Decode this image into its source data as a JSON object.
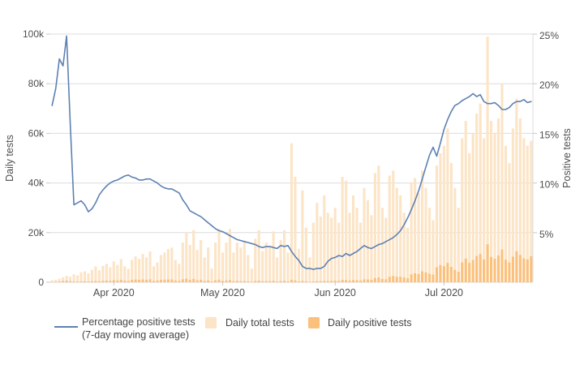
{
  "axes": {
    "left": {
      "title": "Daily tests",
      "ticks": [
        "0",
        "20k",
        "40k",
        "60k",
        "80k",
        "100k"
      ]
    },
    "right": {
      "title": "Positive tests",
      "ticks": [
        "5%",
        "10%",
        "15%",
        "20%",
        "25%"
      ]
    },
    "x": {
      "ticks": [
        "Apr 2020",
        "May 2020",
        "Jun 2020",
        "Jul 2020"
      ]
    }
  },
  "legend": {
    "line_label_1": "Percentage positive tests",
    "line_label_2": "(7-day moving average)",
    "total_label": "Daily total tests",
    "positive_label": "Daily positive tests"
  },
  "colors": {
    "line": "#5e81b2",
    "total_bar": "#fce4c6",
    "positive_bar": "#fbc07b",
    "grid": "#dcdcdc",
    "tick": "#c8c8c8",
    "text": "#4d4d4d"
  },
  "chart_data": {
    "type": "bar+line",
    "x_start": "2020-03-15",
    "x_end": "2020-07-25",
    "x_tick_labels": [
      "Apr 2020",
      "May 2020",
      "Jun 2020",
      "Jul 2020"
    ],
    "month_start_indices": [
      17,
      47,
      78,
      108
    ],
    "y_left": {
      "label": "Daily tests",
      "unit": "tests",
      "range": [
        0,
        100000
      ],
      "ticks": [
        "0",
        "20k",
        "40k",
        "60k",
        "80k",
        "100k"
      ]
    },
    "y_right": {
      "label": "Positive tests",
      "unit": "percent",
      "range": [
        0,
        25
      ],
      "ticks": [
        "5%",
        "10%",
        "15%",
        "20%",
        "25%"
      ]
    },
    "grid": "horizontal",
    "legend_position": "bottom",
    "series": [
      {
        "name": "Daily total tests",
        "type": "bar",
        "axis": "left",
        "unit": "thousands_of_tests",
        "values": [
          0.8,
          1.0,
          1.4,
          2.0,
          2.6,
          2.2,
          3.2,
          2.8,
          4.0,
          4.4,
          3.6,
          5.0,
          6.4,
          4.8,
          6.6,
          7.4,
          6.0,
          8.4,
          7.0,
          9.4,
          6.4,
          5.4,
          9.0,
          10.4,
          9.4,
          11.4,
          10.0,
          12.4,
          6.4,
          8.0,
          11.0,
          12.0,
          13.4,
          14.0,
          9.0,
          7.4,
          16.0,
          20.0,
          15.0,
          21.0,
          13.0,
          17.0,
          10.0,
          14.0,
          5.5,
          16.0,
          21.5,
          12.0,
          16.0,
          21.5,
          12.0,
          16.0,
          14.0,
          16.5,
          11.0,
          5.5,
          17.5,
          21.0,
          12.5,
          16.0,
          14.5,
          20.5,
          10.0,
          17.0,
          21.0,
          12.0,
          56.0,
          42.5,
          13.5,
          37.0,
          22.0,
          10.0,
          24.0,
          32.0,
          26.5,
          35.0,
          28.0,
          26.0,
          30.0,
          24.0,
          42.5,
          41.0,
          28.0,
          35.0,
          30.0,
          24.0,
          38.0,
          33.0,
          27.0,
          44.0,
          47.0,
          30.0,
          26.0,
          43.0,
          45.0,
          38.0,
          35.0,
          28.0,
          22.0,
          40.0,
          42.0,
          36.0,
          45.0,
          38.0,
          30.0,
          25.0,
          47.0,
          52.0,
          55.0,
          62.0,
          48.0,
          38.0,
          30.0,
          58.0,
          65.0,
          52.0,
          60.0,
          68.0,
          72.0,
          58.0,
          99.0,
          65.0,
          60.0,
          66.0,
          80.0,
          55.0,
          48.0,
          62.0,
          74.0,
          66.0,
          58.0,
          55.0,
          57.0
        ]
      },
      {
        "name": "Daily positive tests",
        "type": "bar",
        "axis": "left",
        "unit": "thousands_of_tests",
        "values": [
          0.15,
          0.2,
          0.3,
          0.5,
          0.65,
          0.4,
          0.3,
          0.25,
          0.35,
          0.4,
          0.3,
          0.4,
          0.55,
          0.4,
          0.6,
          0.7,
          0.55,
          0.85,
          0.7,
          1.0,
          0.65,
          0.55,
          0.95,
          1.1,
          1.0,
          1.15,
          1.0,
          1.2,
          0.6,
          0.75,
          1.0,
          1.05,
          1.15,
          1.15,
          0.7,
          0.55,
          1.2,
          1.4,
          1.0,
          1.35,
          0.8,
          1.0,
          0.55,
          0.75,
          0.3,
          0.8,
          1.05,
          0.55,
          0.7,
          0.9,
          0.45,
          0.55,
          0.45,
          0.5,
          0.35,
          0.2,
          0.55,
          0.65,
          0.4,
          0.5,
          0.45,
          0.6,
          0.3,
          0.5,
          0.6,
          0.35,
          1.0,
          0.75,
          0.25,
          0.55,
          0.35,
          0.15,
          0.35,
          0.45,
          0.4,
          0.55,
          0.5,
          0.55,
          0.65,
          0.55,
          0.95,
          0.9,
          0.7,
          0.9,
          0.8,
          0.7,
          1.2,
          1.1,
          1.0,
          1.7,
          1.9,
          1.3,
          1.2,
          2.2,
          2.5,
          2.2,
          2.2,
          1.9,
          1.6,
          3.2,
          3.6,
          3.3,
          4.4,
          4.0,
          3.4,
          3.1,
          6.1,
          7.0,
          6.5,
          7.8,
          6.2,
          5.0,
          4.2,
          8.0,
          9.5,
          7.8,
          9.0,
          10.6,
          11.4,
          9.2,
          15.3,
          10.2,
          9.5,
          10.8,
          13.2,
          9.1,
          8.0,
          10.3,
          12.5,
          11.0,
          9.6,
          9.2,
          10.5
        ]
      },
      {
        "name": "Percentage positive tests (7-day moving average)",
        "type": "line",
        "axis": "right",
        "unit": "percent",
        "values": [
          17.8,
          19.5,
          22.5,
          21.8,
          24.8,
          16.0,
          7.8,
          8.0,
          8.2,
          7.8,
          7.1,
          7.4,
          8.0,
          8.8,
          9.3,
          9.7,
          10.0,
          10.2,
          10.3,
          10.5,
          10.7,
          10.8,
          10.6,
          10.5,
          10.3,
          10.3,
          10.4,
          10.4,
          10.2,
          10.0,
          9.7,
          9.5,
          9.4,
          9.4,
          9.2,
          9.0,
          8.3,
          7.8,
          7.2,
          7.0,
          6.8,
          6.6,
          6.3,
          6.0,
          5.7,
          5.4,
          5.2,
          5.1,
          4.9,
          4.7,
          4.5,
          4.3,
          4.2,
          4.1,
          4.0,
          3.9,
          3.8,
          3.6,
          3.5,
          3.6,
          3.6,
          3.5,
          3.4,
          3.7,
          3.6,
          3.7,
          3.1,
          2.6,
          2.2,
          1.6,
          1.4,
          1.4,
          1.3,
          1.4,
          1.4,
          1.6,
          2.1,
          2.4,
          2.5,
          2.7,
          2.6,
          2.9,
          2.7,
          2.9,
          3.1,
          3.4,
          3.7,
          3.5,
          3.4,
          3.6,
          3.8,
          3.9,
          4.1,
          4.3,
          4.5,
          4.8,
          5.2,
          5.8,
          6.5,
          7.3,
          8.2,
          9.2,
          10.4,
          11.6,
          12.8,
          13.6,
          12.7,
          14.0,
          15.4,
          16.4,
          17.2,
          17.8,
          18.0,
          18.3,
          18.5,
          18.7,
          19.0,
          18.7,
          18.9,
          18.2,
          18.0,
          18.0,
          18.1,
          17.8,
          17.4,
          17.4,
          17.6,
          18.0,
          18.2,
          18.2,
          18.4,
          18.1,
          18.2
        ]
      }
    ]
  }
}
